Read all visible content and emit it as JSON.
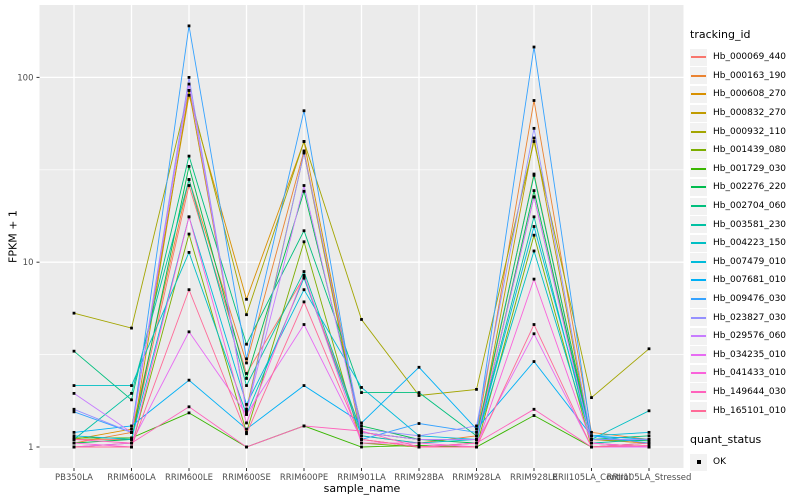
{
  "figure": {
    "background": "#ffffff",
    "panel_bg": "#EBEBEB",
    "grid_color": "#FFFFFF",
    "tick_color": "#333333",
    "axis_text_color": "#4D4D4D",
    "point_color": "#000000"
  },
  "legend": {
    "tracking_title": "tracking_id",
    "quant_title": "quant_status",
    "quant_ok_label": "OK",
    "quant_marker": "black-square"
  },
  "chart_data": {
    "type": "line",
    "title": "",
    "xlabel": "sample_name",
    "ylabel": "FPKM + 1",
    "y_scale": "log10",
    "y_ticks": [
      1,
      10,
      100
    ],
    "y_minor_ticks": [
      3.1623,
      31.623
    ],
    "ylim": [
      0.77,
      246
    ],
    "grid": true,
    "legend_position": "right",
    "point_shape": "filled-black-square",
    "categories": [
      "PB350LA",
      "RRIM600LA",
      "RRIM600LE",
      "RRIM600SE",
      "RRIM600PE",
      "RRIM901LA",
      "RRIM928BA",
      "RRIM928LA",
      "RRIM928LE",
      "RRII105LA_Control",
      "RRII105LA_Stressed"
    ],
    "series": [
      {
        "name": "Hb_000069_440",
        "color": "#F8766D",
        "values": [
          1.1,
          1.1,
          26,
          2.5,
          8.3,
          1.2,
          1.1,
          1.1,
          22.5,
          1.1,
          1.05
        ]
      },
      {
        "name": "Hb_000163_190",
        "color": "#EA8331",
        "values": [
          1.05,
          1.2,
          28,
          2.85,
          40,
          1.15,
          1.05,
          1.15,
          75,
          1.2,
          1.1
        ]
      },
      {
        "name": "Hb_000608_270",
        "color": "#D89000",
        "values": [
          1.1,
          1.25,
          80,
          6.3,
          45,
          1.2,
          1.1,
          1.1,
          30,
          1.1,
          1.05
        ]
      },
      {
        "name": "Hb_000832_270",
        "color": "#C09B00",
        "values": [
          1.0,
          1.05,
          85,
          1.6,
          39,
          1.1,
          1.0,
          1.05,
          47,
          1.05,
          1.0
        ]
      },
      {
        "name": "Hb_000932_110",
        "color": "#A3A500",
        "values": [
          5.3,
          4.4,
          85,
          5.2,
          45,
          4.9,
          1.9,
          2.05,
          45,
          1.85,
          3.4
        ]
      },
      {
        "name": "Hb_001439_080",
        "color": "#7CAE00",
        "values": [
          1.0,
          1.0,
          14.2,
          1.2,
          12.9,
          1.05,
          1.0,
          1.0,
          14,
          1.0,
          1.0
        ]
      },
      {
        "name": "Hb_001729_030",
        "color": "#39B600",
        "values": [
          1.12,
          1.12,
          1.53,
          1.0,
          1.3,
          1.0,
          1.02,
          1.0,
          1.48,
          1.0,
          1.05
        ]
      },
      {
        "name": "Hb_002276_220",
        "color": "#00BB4E",
        "values": [
          1.05,
          1.1,
          33,
          2.35,
          24.2,
          1.3,
          1.1,
          1.05,
          24.4,
          1.1,
          1.08
        ]
      },
      {
        "name": "Hb_002704_060",
        "color": "#00BF7D",
        "values": [
          3.3,
          1.8,
          37.5,
          3.6,
          14.8,
          1.97,
          1.97,
          1.15,
          29.5,
          1.1,
          1.15
        ]
      },
      {
        "name": "Hb_003581_230",
        "color": "#00C1A3",
        "values": [
          1.1,
          1.95,
          28,
          2.15,
          8.9,
          1.2,
          1.1,
          1.1,
          17.6,
          1.05,
          1.1
        ]
      },
      {
        "name": "Hb_004223_150",
        "color": "#00BFC4",
        "values": [
          2.15,
          2.15,
          11.3,
          1.5,
          8.2,
          1.15,
          1.05,
          1.1,
          11.5,
          1.1,
          1.57
        ]
      },
      {
        "name": "Hb_007479_010",
        "color": "#00BBDA",
        "values": [
          1.15,
          1.1,
          17.6,
          1.7,
          7.1,
          2.1,
          1.15,
          1.1,
          15.6,
          1.15,
          1.2
        ]
      },
      {
        "name": "Hb_007681_010",
        "color": "#00B0F6",
        "values": [
          1.2,
          1.3,
          2.3,
          1.25,
          2.15,
          1.35,
          2.7,
          1.25,
          2.9,
          1.15,
          1.1
        ]
      },
      {
        "name": "Hb_009476_030",
        "color": "#35A2FF",
        "values": [
          1.55,
          1.2,
          190,
          3.0,
          66,
          1.1,
          1.34,
          1.2,
          146,
          1.15,
          1.05
        ]
      },
      {
        "name": "Hb_023827_030",
        "color": "#9590FF",
        "values": [
          1.6,
          1.2,
          100,
          1.55,
          39,
          1.25,
          1.15,
          1.3,
          53,
          1.1,
          1.1
        ]
      },
      {
        "name": "Hb_029576_060",
        "color": "#C77CFF",
        "values": [
          1.95,
          1.2,
          92,
          1.55,
          26,
          1.2,
          1.1,
          1.1,
          22.6,
          1.05,
          1.0
        ]
      },
      {
        "name": "Hb_034235_010",
        "color": "#E76BF3",
        "values": [
          1.0,
          1.05,
          4.2,
          1.5,
          4.6,
          1.1,
          1.0,
          1.05,
          4.1,
          1.0,
          1.0
        ]
      },
      {
        "name": "Hb_041433_010",
        "color": "#FA62DB",
        "values": [
          1.05,
          1.0,
          17.6,
          1.35,
          8.5,
          1.05,
          1.05,
          1.0,
          8.1,
          1.05,
          1.0
        ]
      },
      {
        "name": "Hb_149644_030",
        "color": "#FF62BC",
        "values": [
          1.1,
          1.05,
          1.65,
          1.0,
          1.3,
          1.22,
          1.0,
          1.05,
          1.6,
          1.0,
          1.05
        ]
      },
      {
        "name": "Hb_165101_010",
        "color": "#FF6A98",
        "values": [
          1.0,
          1.0,
          7.1,
          1.18,
          6.1,
          1.1,
          1.0,
          1.0,
          4.6,
          1.0,
          1.02
        ]
      }
    ]
  }
}
